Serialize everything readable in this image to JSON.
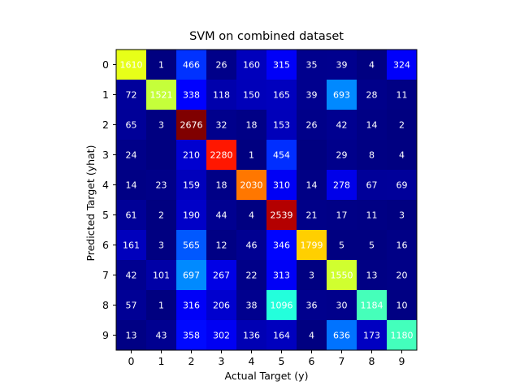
{
  "chart_data": {
    "type": "heatmap",
    "title": "SVM on combined dataset",
    "xlabel": "Actual Target (y)",
    "ylabel": "Predicted Target (yhat)",
    "x_categories": [
      "0",
      "1",
      "2",
      "3",
      "4",
      "5",
      "6",
      "7",
      "8",
      "9"
    ],
    "y_categories": [
      "0",
      "1",
      "2",
      "3",
      "4",
      "5",
      "6",
      "7",
      "8",
      "9"
    ],
    "colormap": "jet",
    "value_range": [
      0,
      2676
    ],
    "values": [
      [
        1610,
        1,
        466,
        26,
        160,
        315,
        35,
        39,
        4,
        324
      ],
      [
        72,
        1521,
        338,
        118,
        150,
        165,
        39,
        693,
        28,
        11
      ],
      [
        65,
        3,
        2676,
        32,
        18,
        153,
        26,
        42,
        14,
        2
      ],
      [
        24,
        0,
        210,
        2280,
        1,
        454,
        0,
        29,
        8,
        4
      ],
      [
        14,
        23,
        159,
        18,
        2030,
        310,
        14,
        278,
        67,
        69
      ],
      [
        61,
        2,
        190,
        44,
        4,
        2539,
        21,
        17,
        11,
        3
      ],
      [
        161,
        3,
        565,
        12,
        46,
        346,
        1799,
        5,
        5,
        16
      ],
      [
        42,
        101,
        697,
        267,
        22,
        313,
        3,
        1550,
        13,
        20
      ],
      [
        57,
        1,
        316,
        206,
        38,
        1096,
        36,
        30,
        1184,
        10
      ],
      [
        13,
        43,
        358,
        302,
        136,
        164,
        4,
        636,
        173,
        1180
      ]
    ],
    "cell_labels": [
      [
        "1610",
        "1",
        "466",
        "26",
        "160",
        "315",
        "35",
        "39",
        "4",
        "324"
      ],
      [
        "72",
        "1521",
        "338",
        "118",
        "150",
        "165",
        "39",
        "693",
        "28",
        "11"
      ],
      [
        "65",
        "3",
        "2676",
        "32",
        "18",
        "153",
        "26",
        "42",
        "14",
        "2"
      ],
      [
        "24",
        "",
        "210",
        "2280",
        "1",
        "454",
        "",
        "29",
        "8",
        "4"
      ],
      [
        "14",
        "23",
        "159",
        "18",
        "2030",
        "310",
        "14",
        "278",
        "67",
        "69"
      ],
      [
        "61",
        "2",
        "190",
        "44",
        "4",
        "2539",
        "21",
        "17",
        "11",
        "3"
      ],
      [
        "161",
        "3",
        "565",
        "12",
        "46",
        "346",
        "1799",
        "5",
        "5",
        "16"
      ],
      [
        "42",
        "101",
        "697",
        "267",
        "22",
        "313",
        "3",
        "1550",
        "13",
        "20"
      ],
      [
        "57",
        "1",
        "316",
        "206",
        "38",
        "1096",
        "36",
        "30",
        "1184",
        "10"
      ],
      [
        "13",
        "43",
        "358",
        "302",
        "136",
        "164",
        "4",
        "636",
        "173",
        "1180"
      ]
    ]
  }
}
